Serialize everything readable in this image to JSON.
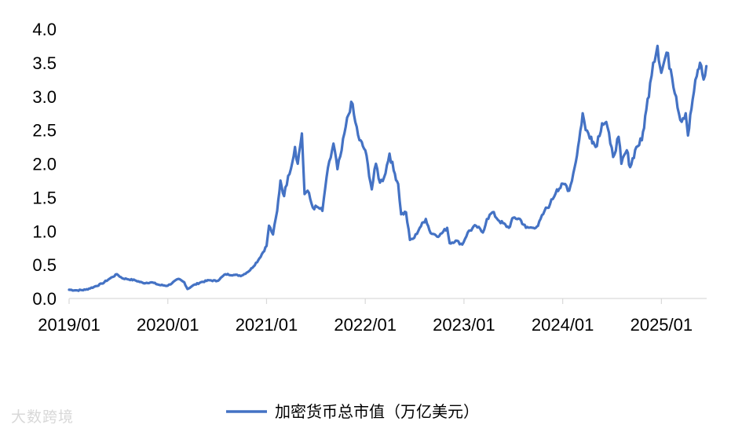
{
  "chart_data": {
    "type": "line",
    "title": "",
    "xlabel": "",
    "ylabel": "",
    "ylim": [
      0,
      4.0
    ],
    "y_ticks": [
      "0.0",
      "0.5",
      "1.0",
      "1.5",
      "2.0",
      "2.5",
      "3.0",
      "3.5",
      "4.0"
    ],
    "x_ticks": [
      "2019/01",
      "2020/01",
      "2021/01",
      "2022/01",
      "2023/01",
      "2024/01",
      "2025/01"
    ],
    "xlim": [
      "2019-01",
      "2025-06"
    ],
    "grid": false,
    "legend_position": "bottom-center",
    "series": [
      {
        "name": "加密货币总市值（万亿美元）",
        "color": "#4472C4",
        "points": [
          [
            "2019-01-01",
            0.13
          ],
          [
            "2019-02-01",
            0.12
          ],
          [
            "2019-03-01",
            0.13
          ],
          [
            "2019-04-01",
            0.17
          ],
          [
            "2019-05-01",
            0.22
          ],
          [
            "2019-06-01",
            0.3
          ],
          [
            "2019-06-26",
            0.36
          ],
          [
            "2019-07-15",
            0.3
          ],
          [
            "2019-08-01",
            0.29
          ],
          [
            "2019-09-01",
            0.27
          ],
          [
            "2019-10-01",
            0.23
          ],
          [
            "2019-11-01",
            0.24
          ],
          [
            "2019-12-01",
            0.2
          ],
          [
            "2020-01-01",
            0.19
          ],
          [
            "2020-02-10",
            0.29
          ],
          [
            "2020-03-01",
            0.24
          ],
          [
            "2020-03-13",
            0.14
          ],
          [
            "2020-04-01",
            0.19
          ],
          [
            "2020-05-01",
            0.24
          ],
          [
            "2020-06-01",
            0.27
          ],
          [
            "2020-07-01",
            0.26
          ],
          [
            "2020-08-01",
            0.36
          ],
          [
            "2020-09-01",
            0.35
          ],
          [
            "2020-10-01",
            0.34
          ],
          [
            "2020-11-01",
            0.42
          ],
          [
            "2020-12-01",
            0.57
          ],
          [
            "2021-01-01",
            0.78
          ],
          [
            "2021-01-10",
            1.08
          ],
          [
            "2021-01-25",
            0.95
          ],
          [
            "2021-02-10",
            1.3
          ],
          [
            "2021-02-22",
            1.75
          ],
          [
            "2021-03-05",
            1.52
          ],
          [
            "2021-03-20",
            1.82
          ],
          [
            "2021-04-05",
            2.02
          ],
          [
            "2021-04-15",
            2.25
          ],
          [
            "2021-04-25",
            2.0
          ],
          [
            "2021-05-10",
            2.45
          ],
          [
            "2021-05-20",
            1.55
          ],
          [
            "2021-06-01",
            1.6
          ],
          [
            "2021-06-20",
            1.35
          ],
          [
            "2021-07-10",
            1.35
          ],
          [
            "2021-07-25",
            1.3
          ],
          [
            "2021-08-10",
            1.8
          ],
          [
            "2021-09-05",
            2.3
          ],
          [
            "2021-09-20",
            1.92
          ],
          [
            "2021-10-05",
            2.2
          ],
          [
            "2021-10-20",
            2.55
          ],
          [
            "2021-11-10",
            2.92
          ],
          [
            "2021-11-25",
            2.62
          ],
          [
            "2021-12-10",
            2.35
          ],
          [
            "2022-01-01",
            2.2
          ],
          [
            "2022-01-25",
            1.62
          ],
          [
            "2022-02-10",
            2.0
          ],
          [
            "2022-02-25",
            1.72
          ],
          [
            "2022-03-10",
            1.8
          ],
          [
            "2022-03-30",
            2.15
          ],
          [
            "2022-04-15",
            1.9
          ],
          [
            "2022-05-01",
            1.7
          ],
          [
            "2022-05-12",
            1.25
          ],
          [
            "2022-05-30",
            1.28
          ],
          [
            "2022-06-14",
            0.87
          ],
          [
            "2022-06-30",
            0.9
          ],
          [
            "2022-07-20",
            1.05
          ],
          [
            "2022-08-12",
            1.18
          ],
          [
            "2022-08-30",
            0.97
          ],
          [
            "2022-09-15",
            0.95
          ],
          [
            "2022-10-01",
            0.93
          ],
          [
            "2022-10-30",
            1.05
          ],
          [
            "2022-11-09",
            0.82
          ],
          [
            "2022-12-01",
            0.86
          ],
          [
            "2022-12-25",
            0.8
          ],
          [
            "2023-01-15",
            0.98
          ],
          [
            "2023-02-15",
            1.08
          ],
          [
            "2023-03-10",
            0.98
          ],
          [
            "2023-03-25",
            1.18
          ],
          [
            "2023-04-15",
            1.28
          ],
          [
            "2023-05-10",
            1.15
          ],
          [
            "2023-06-15",
            1.05
          ],
          [
            "2023-07-01",
            1.2
          ],
          [
            "2023-07-25",
            1.18
          ],
          [
            "2023-08-17",
            1.05
          ],
          [
            "2023-09-10",
            1.05
          ],
          [
            "2023-10-01",
            1.08
          ],
          [
            "2023-10-25",
            1.3
          ],
          [
            "2023-11-15",
            1.4
          ],
          [
            "2023-12-10",
            1.62
          ],
          [
            "2024-01-10",
            1.7
          ],
          [
            "2024-01-25",
            1.6
          ],
          [
            "2024-02-15",
            1.95
          ],
          [
            "2024-03-01",
            2.35
          ],
          [
            "2024-03-14",
            2.75
          ],
          [
            "2024-03-25",
            2.5
          ],
          [
            "2024-04-15",
            2.4
          ],
          [
            "2024-05-01",
            2.25
          ],
          [
            "2024-05-25",
            2.6
          ],
          [
            "2024-06-10",
            2.62
          ],
          [
            "2024-06-25",
            2.3
          ],
          [
            "2024-07-05",
            2.1
          ],
          [
            "2024-07-25",
            2.4
          ],
          [
            "2024-08-05",
            2.0
          ],
          [
            "2024-08-25",
            2.2
          ],
          [
            "2024-09-07",
            1.95
          ],
          [
            "2024-09-30",
            2.25
          ],
          [
            "2024-10-20",
            2.35
          ],
          [
            "2024-11-06",
            2.8
          ],
          [
            "2024-11-20",
            3.2
          ],
          [
            "2024-12-01",
            3.5
          ],
          [
            "2024-12-17",
            3.75
          ],
          [
            "2024-12-31",
            3.35
          ],
          [
            "2025-01-20",
            3.65
          ],
          [
            "2025-02-05",
            3.4
          ],
          [
            "2025-02-25",
            3.0
          ],
          [
            "2025-03-10",
            2.65
          ],
          [
            "2025-03-30",
            2.75
          ],
          [
            "2025-04-08",
            2.42
          ],
          [
            "2025-04-25",
            2.95
          ],
          [
            "2025-05-10",
            3.3
          ],
          [
            "2025-05-22",
            3.5
          ],
          [
            "2025-06-05",
            3.25
          ],
          [
            "2025-06-15",
            3.45
          ]
        ]
      }
    ]
  },
  "watermark": "大数跨境"
}
